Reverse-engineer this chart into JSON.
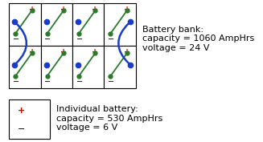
{
  "grid_rows": 2,
  "grid_cols": 4,
  "battery_bank_text": "Battery bank:\ncapacity = 1060 AmpHrs\nvoltage = 24 V",
  "individual_battery_text": "Individual battery:\ncapacity = 530 AmpHrs\nvoltage = 6 V",
  "plus_color": "#cc0000",
  "minus_color": "#000000",
  "green_color": "#2a7a2a",
  "blue_color": "#1a3cc8",
  "box_color": "#000000",
  "text_color": "#000000",
  "bg_color": "#ffffff",
  "font_size": 8
}
